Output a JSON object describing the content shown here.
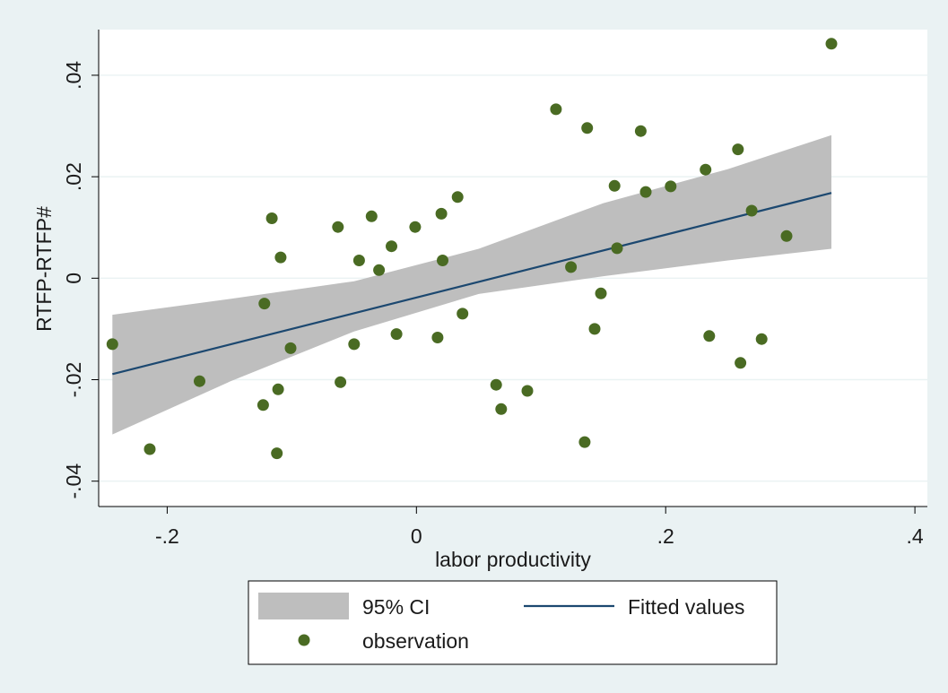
{
  "chart_data": {
    "type": "scatter",
    "xlabel": "labor productivity",
    "ylabel": "RTFP-RTFP#",
    "xlim": [
      -0.255,
      0.41
    ],
    "ylim": [
      -0.045,
      0.049
    ],
    "x_ticks": [
      {
        "value": -0.2,
        "label": "-.2"
      },
      {
        "value": 0,
        "label": "0"
      },
      {
        "value": 0.2,
        "label": ".2"
      },
      {
        "value": 0.4,
        "label": ".4"
      }
    ],
    "y_ticks": [
      {
        "value": -0.04,
        "label": "-.04"
      },
      {
        "value": -0.02,
        "label": "-.02"
      },
      {
        "value": 0,
        "label": "0"
      },
      {
        "value": 0.02,
        "label": ".02"
      },
      {
        "value": 0.04,
        "label": ".04"
      }
    ],
    "grid": true,
    "legend_position": "bottom",
    "colors": {
      "points": "#4a6b23",
      "fit_line": "#1c4870",
      "ci_band": "#bebebe",
      "grid": "#eaf2f3",
      "plot_bg": "#ffffff",
      "outer_bg": "#eaf2f3"
    },
    "series": [
      {
        "name": "observation",
        "kind": "scatter",
        "points": [
          [
            -0.244,
            -0.013
          ],
          [
            -0.214,
            -0.0337
          ],
          [
            -0.174,
            -0.0203
          ],
          [
            -0.122,
            -0.005
          ],
          [
            -0.123,
            -0.025
          ],
          [
            -0.116,
            0.0118
          ],
          [
            -0.111,
            -0.0219
          ],
          [
            -0.112,
            -0.0345
          ],
          [
            -0.109,
            0.0041
          ],
          [
            -0.101,
            -0.0138
          ],
          [
            -0.063,
            0.0101
          ],
          [
            -0.061,
            -0.0205
          ],
          [
            -0.05,
            -0.013
          ],
          [
            -0.046,
            0.0035
          ],
          [
            -0.036,
            0.0122
          ],
          [
            -0.03,
            0.0016
          ],
          [
            -0.02,
            0.0063
          ],
          [
            -0.016,
            -0.011
          ],
          [
            -0.001,
            0.0101
          ],
          [
            0.017,
            -0.0117
          ],
          [
            0.02,
            0.0127
          ],
          [
            0.021,
            0.0035
          ],
          [
            0.033,
            0.016
          ],
          [
            0.037,
            -0.007
          ],
          [
            0.064,
            -0.021
          ],
          [
            0.068,
            -0.0258
          ],
          [
            0.089,
            -0.0222
          ],
          [
            0.112,
            0.0333
          ],
          [
            0.124,
            0.0022
          ],
          [
            0.135,
            -0.0323
          ],
          [
            0.137,
            0.0296
          ],
          [
            0.143,
            -0.01
          ],
          [
            0.148,
            -0.003
          ],
          [
            0.159,
            0.0182
          ],
          [
            0.161,
            0.0059
          ],
          [
            0.18,
            0.029
          ],
          [
            0.184,
            0.017
          ],
          [
            0.204,
            0.0181
          ],
          [
            0.232,
            0.0214
          ],
          [
            0.235,
            -0.0114
          ],
          [
            0.258,
            0.0254
          ],
          [
            0.26,
            -0.0167
          ],
          [
            0.269,
            0.0133
          ],
          [
            0.277,
            -0.012
          ],
          [
            0.297,
            0.0083
          ],
          [
            0.333,
            0.0462
          ]
        ]
      },
      {
        "name": "Fitted values",
        "kind": "line",
        "points": [
          [
            -0.244,
            -0.0189
          ],
          [
            0.333,
            0.0168
          ]
        ]
      },
      {
        "name": "95% CI",
        "kind": "band",
        "points": [
          {
            "x": -0.244,
            "lower": -0.0308,
            "upper": -0.0072
          },
          {
            "x": -0.15,
            "lower": -0.0204,
            "upper": -0.0041
          },
          {
            "x": -0.05,
            "lower": -0.0105,
            "upper": -0.0006
          },
          {
            "x": 0.05,
            "lower": -0.0031,
            "upper": 0.0058
          },
          {
            "x": 0.15,
            "lower": 0.0004,
            "upper": 0.0148
          },
          {
            "x": 0.25,
            "lower": 0.0035,
            "upper": 0.0215
          },
          {
            "x": 0.333,
            "lower": 0.0058,
            "upper": 0.0282
          }
        ]
      }
    ],
    "legend": {
      "items": [
        {
          "label": "95% CI",
          "swatch": "band"
        },
        {
          "label": "Fitted values",
          "swatch": "line"
        },
        {
          "label": "observation",
          "swatch": "marker"
        }
      ]
    }
  }
}
